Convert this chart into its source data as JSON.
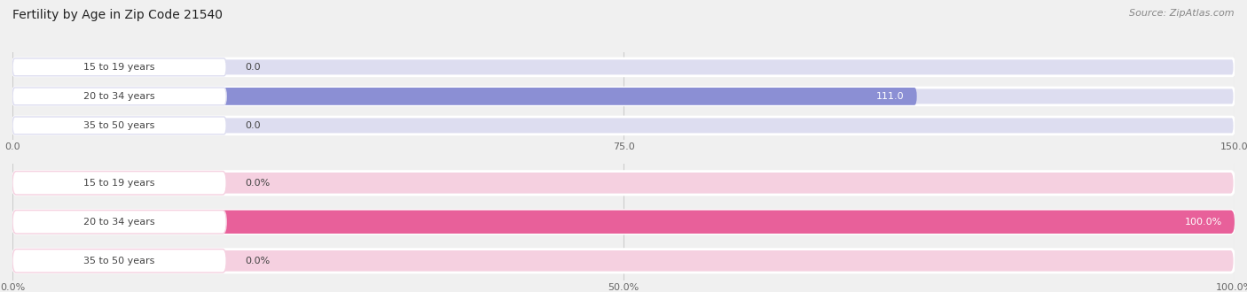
{
  "title": "Fertility by Age in Zip Code 21540",
  "source": "Source: ZipAtlas.com",
  "top_chart": {
    "categories": [
      "15 to 19 years",
      "20 to 34 years",
      "35 to 50 years"
    ],
    "values": [
      0.0,
      111.0,
      0.0
    ],
    "xlim": [
      0,
      150
    ],
    "xticks": [
      0.0,
      75.0,
      150.0
    ],
    "xtick_labels": [
      "0.0",
      "75.0",
      "150.0"
    ],
    "bar_color": "#8b8fd4",
    "bar_bg_color": "#ddddf0",
    "label_bg_color": "#e8e8f5"
  },
  "bottom_chart": {
    "categories": [
      "15 to 19 years",
      "20 to 34 years",
      "35 to 50 years"
    ],
    "values": [
      0.0,
      100.0,
      0.0
    ],
    "xlim": [
      0,
      100
    ],
    "xticks": [
      0.0,
      50.0,
      100.0
    ],
    "xtick_labels": [
      "0.0%",
      "50.0%",
      "100.0%"
    ],
    "bar_color": "#e8609a",
    "bar_bg_color": "#f5d0e0",
    "label_bg_color": "#f5e0eb"
  },
  "bg_color": "#f0f0f0",
  "divider_color": "#cccccc",
  "title_fontsize": 10,
  "label_fontsize": 8,
  "value_fontsize": 8,
  "tick_fontsize": 8,
  "source_fontsize": 8,
  "label_color": "#444444",
  "tick_color": "#666666",
  "grid_color": "#cccccc"
}
